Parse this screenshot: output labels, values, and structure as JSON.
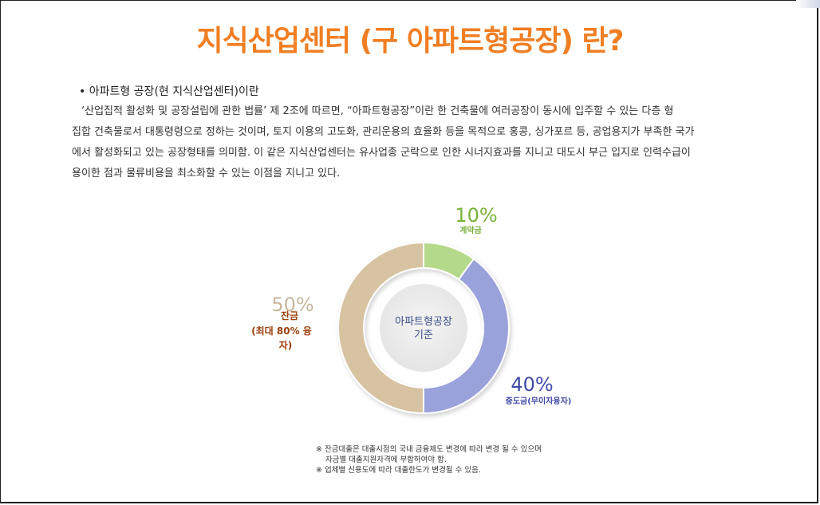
{
  "title": "지식산업센터 (구 아파트형공장) 란?",
  "heading": "• 아파트형 공장(현 지식산업센터)이란",
  "paragraph_lines": [
    "‘산업집적 활성화 및 공장설립에 관한 법률’  제 2조에 따르면,  “아파트형공장”이란 한 건축물에 여러공장이 동시에 입주할 수 있는 다층 형",
    "집합 건축물로서 대통령령으로 정하는 것이며, 토지 이용의 고도화, 관리운용의 효율화 등을 목적으로 홍콩, 싱가포르 등, 공업용지가 부족한 국가",
    "에서 활성화되고 있는 공장형태를 의미함. 이 같은 지식산업센터는 유사업종 군락으로 인한 시너지효과를 지니고 대도시 부근 입지로 인력수급이",
    "용이한 점과 물류비용을 최소화할 수 있는 이점을 지니고 있다."
  ],
  "chart_data": {
    "type": "pie",
    "center_label": [
      "아파트형공장",
      "기준"
    ],
    "slices": [
      {
        "label": "계약금",
        "value": 10,
        "display": "10%",
        "color": "#b5d98a",
        "label_color": "#7ab13b"
      },
      {
        "label": "중도금(무이자융자)",
        "value": 40,
        "display": "40%",
        "color": "#9aa2dc",
        "label_color": "#3f4aa8"
      },
      {
        "label_lines": [
          "잔금",
          "(최대  80%  융",
          "자)"
        ],
        "value": 50,
        "display": "50%",
        "color": "#d7c2a2",
        "label_color": "#9b3f0c"
      }
    ]
  },
  "notes": [
    "※  잔금대출은 대출시점의 국내 금융제도 변경에 따라 변경 될 수 있으며",
    "자금별 대출지원자격에 부합하여야 함.",
    "※  업체별 신용도에 따라 대출한도가 변경될 수 있음."
  ]
}
